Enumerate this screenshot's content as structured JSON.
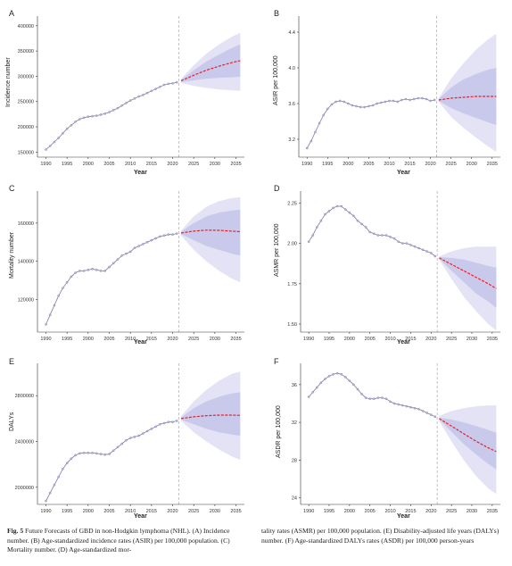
{
  "caption": {
    "fig_label": "Fig. 5",
    "left_text": "Future Forecasts of GBD in non-Hodgkin lymphoma (NHL). (A) Incidence number. (B) Age-standardized incidence rates (ASIR) per 100,000 population. (C) Mortality number. (D) Age-standardized mor-",
    "right_text": "tality rates (ASMR) per 100,000 population. (E) Disability-adjusted life years (DALYs) number. (F) Age-standardized DALYs rates (ASDR) per 100,000 person-years"
  },
  "colors": {
    "observed": "#7a7aa8",
    "forecast": "#e8202a",
    "band_outer": "#e3e3f5",
    "band_inner": "#c9c9eb",
    "vline": "#aaaaaa"
  },
  "chart_data": [
    {
      "panel": "A",
      "type": "line",
      "ylabel": "Incidence number",
      "xlabel": "Year",
      "xlim": [
        1988,
        2037
      ],
      "ylim": [
        140000,
        405000
      ],
      "xticks": [
        1990,
        1995,
        2000,
        2005,
        2010,
        2015,
        2020,
        2025,
        2030,
        2035
      ],
      "yticks": [
        150000,
        200000,
        250000,
        300000,
        350000,
        400000
      ],
      "ytick_labels": [
        "150000",
        "200000",
        "250000",
        "300000",
        "350000",
        "400000"
      ],
      "observed_x": [
        1990,
        1991,
        1992,
        1993,
        1994,
        1995,
        1996,
        1997,
        1998,
        1999,
        2000,
        2001,
        2002,
        2003,
        2004,
        2005,
        2006,
        2007,
        2008,
        2009,
        2010,
        2011,
        2012,
        2013,
        2014,
        2015,
        2016,
        2017,
        2018,
        2019,
        2020,
        2021
      ],
      "observed_y": [
        155000,
        162000,
        170000,
        178000,
        187000,
        196000,
        203000,
        210000,
        215000,
        218000,
        220000,
        221000,
        222000,
        224000,
        226000,
        229000,
        233000,
        237000,
        242000,
        247000,
        252000,
        256000,
        260000,
        263000,
        267000,
        271000,
        275000,
        279000,
        283000,
        285000,
        286000,
        288000
      ],
      "forecast_x": [
        2022,
        2025,
        2028,
        2031,
        2034,
        2036
      ],
      "forecast_y": [
        291000,
        302000,
        312000,
        320000,
        327000,
        331000
      ],
      "band_outer_lower": [
        287000,
        281000,
        277000,
        274000,
        272000,
        271000
      ],
      "band_outer_upper": [
        295000,
        322000,
        345000,
        363000,
        378000,
        386000
      ],
      "band_inner_lower": [
        289000,
        292000,
        295000,
        297000,
        298000,
        299000
      ],
      "band_inner_upper": [
        293000,
        312000,
        329000,
        343000,
        356000,
        363000
      ]
    },
    {
      "panel": "B",
      "type": "line",
      "ylabel": "ASIR per 100,000",
      "xlabel": "Year",
      "xlim": [
        1988,
        2037
      ],
      "ylim": [
        3.0,
        4.5
      ],
      "xticks": [
        1990,
        1995,
        2000,
        2005,
        2010,
        2015,
        2020,
        2025,
        2030,
        2035
      ],
      "yticks": [
        3.2,
        3.6,
        4.0,
        4.4
      ],
      "ytick_labels": [
        "3.2",
        "3.6",
        "4.0",
        "4.4"
      ],
      "observed_x": [
        1990,
        1991,
        1992,
        1993,
        1994,
        1995,
        1996,
        1997,
        1998,
        1999,
        2000,
        2001,
        2002,
        2003,
        2004,
        2005,
        2006,
        2007,
        2008,
        2009,
        2010,
        2011,
        2012,
        2013,
        2014,
        2015,
        2016,
        2017,
        2018,
        2019,
        2020,
        2021
      ],
      "observed_y": [
        3.1,
        3.18,
        3.28,
        3.38,
        3.47,
        3.54,
        3.59,
        3.62,
        3.63,
        3.62,
        3.6,
        3.58,
        3.57,
        3.56,
        3.56,
        3.57,
        3.58,
        3.6,
        3.61,
        3.62,
        3.63,
        3.63,
        3.62,
        3.64,
        3.65,
        3.64,
        3.65,
        3.66,
        3.66,
        3.65,
        3.63,
        3.64
      ],
      "forecast_x": [
        2022,
        2025,
        2028,
        2031,
        2034,
        2036
      ],
      "forecast_y": [
        3.64,
        3.66,
        3.67,
        3.68,
        3.68,
        3.68
      ],
      "band_outer_lower": [
        3.62,
        3.45,
        3.33,
        3.22,
        3.12,
        3.06
      ],
      "band_outer_upper": [
        3.66,
        3.88,
        4.05,
        4.2,
        4.32,
        4.38
      ],
      "band_inner_lower": [
        3.63,
        3.55,
        3.49,
        3.44,
        3.39,
        3.36
      ],
      "band_inner_upper": [
        3.65,
        3.78,
        3.87,
        3.93,
        3.98,
        4.0
      ]
    },
    {
      "panel": "C",
      "type": "line",
      "ylabel": "Mortality number",
      "xlabel": "Year",
      "xlim": [
        1988,
        2037
      ],
      "ylim": [
        103000,
        173000
      ],
      "xticks": [
        1990,
        1995,
        2000,
        2005,
        2010,
        2015,
        2020,
        2025,
        2030,
        2035
      ],
      "yticks": [
        120000,
        140000,
        160000
      ],
      "ytick_labels": [
        "120000",
        "140000",
        "160000"
      ],
      "observed_x": [
        1990,
        1991,
        1992,
        1993,
        1994,
        1995,
        1996,
        1997,
        1998,
        1999,
        2000,
        2001,
        2002,
        2003,
        2004,
        2005,
        2006,
        2007,
        2008,
        2009,
        2010,
        2011,
        2012,
        2013,
        2014,
        2015,
        2016,
        2017,
        2018,
        2019,
        2020,
        2021
      ],
      "observed_y": [
        107000,
        112000,
        117000,
        122000,
        126000,
        129000,
        132000,
        134000,
        135000,
        135000,
        135500,
        136000,
        135500,
        135000,
        135000,
        137000,
        139000,
        141000,
        143000,
        144000,
        145000,
        147000,
        148000,
        149000,
        150000,
        151000,
        152000,
        153000,
        153500,
        154000,
        154000,
        154500
      ],
      "forecast_x": [
        2022,
        2025,
        2028,
        2031,
        2034,
        2036
      ],
      "forecast_y": [
        154800,
        155800,
        156300,
        156200,
        155800,
        155500
      ],
      "band_outer_lower": [
        153500,
        146000,
        140000,
        135000,
        131000,
        129000
      ],
      "band_outer_upper": [
        156000,
        163500,
        168500,
        171500,
        173000,
        173500
      ],
      "band_inner_lower": [
        154200,
        151000,
        148000,
        146000,
        144000,
        143000
      ],
      "band_inner_upper": [
        155400,
        160000,
        163500,
        165500,
        166500,
        167000
      ]
    },
    {
      "panel": "D",
      "type": "line",
      "ylabel": "ASMR per 100,000",
      "xlabel": "Year",
      "xlim": [
        1988,
        2037
      ],
      "ylim": [
        1.45,
        2.28
      ],
      "xticks": [
        1990,
        1995,
        2000,
        2005,
        2010,
        2015,
        2020,
        2025,
        2030,
        2035
      ],
      "yticks": [
        1.5,
        1.75,
        2.0,
        2.25
      ],
      "ytick_labels": [
        "1.50",
        "1.75",
        "2.00",
        "2.25"
      ],
      "observed_x": [
        1990,
        1991,
        1992,
        1993,
        1994,
        1995,
        1996,
        1997,
        1998,
        1999,
        2000,
        2001,
        2002,
        2003,
        2004,
        2005,
        2006,
        2007,
        2008,
        2009,
        2010,
        2011,
        2012,
        2013,
        2014,
        2015,
        2016,
        2017,
        2018,
        2019,
        2020,
        2021
      ],
      "observed_y": [
        2.01,
        2.05,
        2.1,
        2.14,
        2.18,
        2.2,
        2.22,
        2.23,
        2.23,
        2.21,
        2.19,
        2.17,
        2.14,
        2.12,
        2.1,
        2.07,
        2.06,
        2.05,
        2.05,
        2.05,
        2.04,
        2.03,
        2.01,
        2.0,
        2.0,
        1.99,
        1.98,
        1.97,
        1.96,
        1.95,
        1.94,
        1.92
      ],
      "forecast_x": [
        2022,
        2025,
        2028,
        2031,
        2034,
        2036
      ],
      "forecast_y": [
        1.91,
        1.87,
        1.83,
        1.79,
        1.75,
        1.72
      ],
      "band_outer_lower": [
        1.9,
        1.78,
        1.67,
        1.58,
        1.5,
        1.46
      ],
      "band_outer_upper": [
        1.92,
        1.95,
        1.97,
        1.98,
        1.98,
        1.98
      ],
      "band_inner_lower": [
        1.905,
        1.83,
        1.76,
        1.69,
        1.64,
        1.6
      ],
      "band_inner_upper": [
        1.915,
        1.91,
        1.9,
        1.88,
        1.86,
        1.85
      ]
    },
    {
      "panel": "E",
      "type": "line",
      "ylabel": "DALYs",
      "xlabel": "Year",
      "xlim": [
        1988,
        2037
      ],
      "ylim": [
        1850000,
        3020000
      ],
      "xticks": [
        1990,
        1995,
        2000,
        2005,
        2010,
        2015,
        2020,
        2025,
        2030,
        2035
      ],
      "yticks": [
        2000000,
        2400000,
        2800000
      ],
      "ytick_labels": [
        "2000000",
        "2400000",
        "2800000"
      ],
      "observed_x": [
        1990,
        1991,
        1992,
        1993,
        1994,
        1995,
        1996,
        1997,
        1998,
        1999,
        2000,
        2001,
        2002,
        2003,
        2004,
        2005,
        2006,
        2007,
        2008,
        2009,
        2010,
        2011,
        2012,
        2013,
        2014,
        2015,
        2016,
        2017,
        2018,
        2019,
        2020,
        2021
      ],
      "observed_y": [
        1880000,
        1950000,
        2020000,
        2090000,
        2160000,
        2210000,
        2250000,
        2280000,
        2295000,
        2300000,
        2300000,
        2300000,
        2295000,
        2290000,
        2285000,
        2290000,
        2320000,
        2350000,
        2380000,
        2410000,
        2430000,
        2440000,
        2450000,
        2470000,
        2490000,
        2510000,
        2530000,
        2550000,
        2560000,
        2570000,
        2570000,
        2580000
      ],
      "forecast_x": [
        2022,
        2025,
        2028,
        2031,
        2034,
        2036
      ],
      "forecast_y": [
        2600000,
        2615000,
        2625000,
        2630000,
        2630000,
        2628000
      ],
      "band_outer_lower": [
        2580000,
        2480000,
        2400000,
        2330000,
        2270000,
        2240000
      ],
      "band_outer_upper": [
        2620000,
        2750000,
        2850000,
        2930000,
        2990000,
        3010000
      ],
      "band_inner_lower": [
        2590000,
        2550000,
        2510000,
        2480000,
        2460000,
        2450000
      ],
      "band_inner_upper": [
        2610000,
        2690000,
        2750000,
        2790000,
        2820000,
        2830000
      ]
    },
    {
      "panel": "F",
      "type": "line",
      "ylabel": "ASDR per 100,000",
      "xlabel": "Year",
      "xlim": [
        1988,
        2037
      ],
      "ylim": [
        23.3,
        37.5
      ],
      "xticks": [
        1990,
        1995,
        2000,
        2005,
        2010,
        2015,
        2020,
        2025,
        2030,
        2035
      ],
      "yticks": [
        24,
        28,
        32,
        36
      ],
      "ytick_labels": [
        "24",
        "28",
        "32",
        "36"
      ],
      "observed_x": [
        1990,
        1991,
        1992,
        1993,
        1994,
        1995,
        1996,
        1997,
        1998,
        1999,
        2000,
        2001,
        2002,
        2003,
        2004,
        2005,
        2006,
        2007,
        2008,
        2009,
        2010,
        2011,
        2012,
        2013,
        2014,
        2015,
        2016,
        2017,
        2018,
        2019,
        2020,
        2021
      ],
      "observed_y": [
        34.7,
        35.2,
        35.7,
        36.2,
        36.6,
        36.9,
        37.1,
        37.2,
        37.1,
        36.8,
        36.4,
        36.0,
        35.5,
        35.0,
        34.6,
        34.5,
        34.5,
        34.6,
        34.6,
        34.5,
        34.2,
        34.0,
        33.9,
        33.8,
        33.7,
        33.6,
        33.5,
        33.4,
        33.2,
        33.0,
        32.8,
        32.6
      ],
      "forecast_x": [
        2022,
        2025,
        2028,
        2031,
        2034,
        2036
      ],
      "forecast_y": [
        32.4,
        31.6,
        30.8,
        30.0,
        29.3,
        28.9
      ],
      "band_outer_lower": [
        32.1,
        30.0,
        28.0,
        26.3,
        25.0,
        24.4
      ],
      "band_outer_upper": [
        32.7,
        33.2,
        33.5,
        33.7,
        33.8,
        33.8
      ],
      "band_inner_lower": [
        32.3,
        31.0,
        29.7,
        28.6,
        27.6,
        27.0
      ],
      "band_inner_upper": [
        32.5,
        32.3,
        32.0,
        31.6,
        31.2,
        30.9
      ]
    }
  ]
}
